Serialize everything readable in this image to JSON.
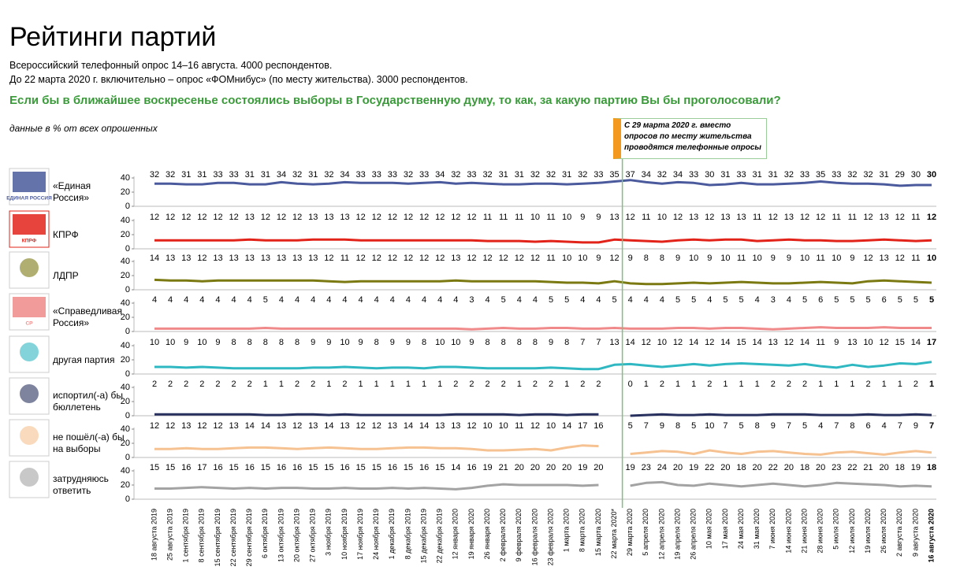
{
  "chart_data": {
    "type": "line",
    "title": "Рейтинги партий",
    "subtitle": [
      "Всероссийский телефонный опрос 14–16 августа. 4000 респондентов.",
      "До 22 марта 2020 г. включительно – опрос «ФОМнибус» (по месту жительства). 3000 респондентов."
    ],
    "question": "Если бы в ближайшее воскресенье состоялись выборы в Государственную думу, то как, за какую партию Вы бы проголосовали?",
    "note": "данные в % от всех опрошенных",
    "annotation": "С 29 марта 2020 г. вместо опросов по месту жительства проводятся телефонные опросы",
    "ylim": [
      0,
      40
    ],
    "yticks": [
      0,
      20,
      40
    ],
    "categories": [
      "18 августа 2019",
      "25 августа 2019",
      "1 сентября 2019",
      "8 сентября 2019",
      "15 сентября 2019",
      "22 сентября 2019",
      "29 сентября 2019",
      "6 октября 2019",
      "13 октября 2019",
      "20 октября 2019",
      "27 октября 2019",
      "3 ноября 2019",
      "10 ноября 2019",
      "17 ноября 2019",
      "24 ноября 2019",
      "1 декабря 2019",
      "8 декабря 2019",
      "15 декабря 2019",
      "22 декабря 2019",
      "12 января 2020",
      "19 января 2020",
      "26 января 2020",
      "2 февраля 2020",
      "9 февраля 2020",
      "16 февраля 2020",
      "23 февраля 2020",
      "1 марта 2020",
      "8 марта 2020",
      "15 марта 2020",
      "22 марта 2020*",
      "29 марта 2020",
      "5 апреля 2020",
      "12 апреля 2020",
      "19 апреля 2020",
      "26 апреля 2020",
      "10 мая 2020",
      "17 мая 2020",
      "24 мая 2020",
      "31 мая 2020",
      "7 июня 2020",
      "14 июня 2020",
      "21 июня 2020",
      "28 июня 2020",
      "5 июля 2020",
      "12 июля 2020",
      "19 июля 2020",
      "26 июля 2020",
      "2 августа 2020",
      "9 августа 2020",
      "16 августа 2020"
    ],
    "series": [
      {
        "name": "«Единая Россия»",
        "logo_text": "ЕДИНАЯ РОССИЯ",
        "color": "#4a5a9c",
        "values": [
          32,
          32,
          31,
          31,
          33,
          33,
          31,
          31,
          34,
          32,
          31,
          32,
          34,
          33,
          33,
          33,
          32,
          33,
          34,
          32,
          33,
          32,
          31,
          31,
          32,
          32,
          31,
          32,
          33,
          35,
          37,
          34,
          32,
          34,
          33,
          30,
          31,
          33,
          31,
          31,
          32,
          33,
          35,
          33,
          32,
          32,
          31,
          29,
          30,
          30
        ]
      },
      {
        "name": "КПРФ",
        "logo_text": "КПРФ",
        "color": "#e2231a",
        "values": [
          12,
          12,
          12,
          12,
          12,
          12,
          13,
          12,
          12,
          12,
          13,
          13,
          13,
          12,
          12,
          12,
          12,
          12,
          12,
          12,
          12,
          11,
          11,
          11,
          10,
          11,
          10,
          9,
          9,
          13,
          12,
          11,
          10,
          12,
          13,
          12,
          13,
          13,
          11,
          12,
          13,
          12,
          12,
          11,
          11,
          12,
          13,
          12,
          11,
          12
        ]
      },
      {
        "name": "ЛДПР",
        "color": "#7b7a12",
        "values": [
          14,
          13,
          13,
          12,
          13,
          13,
          13,
          13,
          13,
          13,
          13,
          12,
          11,
          12,
          12,
          12,
          12,
          12,
          12,
          13,
          12,
          12,
          12,
          12,
          12,
          11,
          10,
          10,
          9,
          12,
          9,
          8,
          8,
          9,
          10,
          9,
          10,
          11,
          10,
          9,
          9,
          10,
          11,
          10,
          9,
          12,
          13,
          12,
          11,
          10
        ]
      },
      {
        "name": "«Справедливая Россия»",
        "logo_text": "СР",
        "color": "#f08a8a",
        "values": [
          4,
          4,
          4,
          4,
          4,
          4,
          4,
          5,
          4,
          4,
          4,
          4,
          4,
          4,
          4,
          4,
          4,
          4,
          4,
          4,
          3,
          4,
          5,
          4,
          4,
          5,
          5,
          4,
          4,
          5,
          4,
          4,
          4,
          5,
          5,
          4,
          5,
          5,
          4,
          3,
          4,
          5,
          6,
          5,
          5,
          5,
          6,
          5,
          5,
          5
        ]
      },
      {
        "name": "другая партия",
        "color": "#2fb8c2",
        "values": [
          10,
          10,
          9,
          10,
          9,
          8,
          8,
          8,
          8,
          8,
          9,
          9,
          10,
          9,
          8,
          9,
          9,
          8,
          10,
          10,
          9,
          8,
          8,
          8,
          8,
          9,
          8,
          7,
          7,
          13,
          14,
          12,
          10,
          12,
          14,
          12,
          14,
          15,
          14,
          13,
          12,
          14,
          11,
          9,
          13,
          10,
          12,
          15,
          14,
          17
        ]
      },
      {
        "name": "испортил(-а) бы бюллетень",
        "color": "#28305e",
        "values": [
          2,
          2,
          2,
          2,
          2,
          2,
          2,
          1,
          1,
          2,
          2,
          1,
          2,
          1,
          1,
          1,
          1,
          1,
          1,
          2,
          2,
          2,
          2,
          1,
          2,
          2,
          1,
          2,
          2,
          null,
          0,
          1,
          2,
          1,
          1,
          2,
          1,
          1,
          1,
          2,
          2,
          2,
          1,
          1,
          1,
          2,
          1,
          1,
          2,
          1
        ]
      },
      {
        "name": "не пошёл(-а) бы на выборы",
        "color": "#f6c291",
        "values": [
          12,
          12,
          13,
          12,
          12,
          13,
          14,
          14,
          13,
          12,
          13,
          14,
          13,
          12,
          12,
          13,
          14,
          14,
          13,
          13,
          12,
          10,
          10,
          11,
          12,
          10,
          14,
          17,
          16,
          null,
          5,
          7,
          9,
          8,
          5,
          10,
          7,
          5,
          8,
          9,
          7,
          5,
          4,
          7,
          8,
          6,
          4,
          7,
          9,
          7
        ]
      },
      {
        "name": "затрудняюсь ответить",
        "color": "#a3a3a3",
        "values": [
          15,
          15,
          16,
          17,
          16,
          15,
          16,
          15,
          16,
          16,
          15,
          15,
          16,
          15,
          15,
          16,
          15,
          16,
          15,
          14,
          16,
          19,
          21,
          20,
          20,
          20,
          20,
          19,
          20,
          null,
          19,
          23,
          24,
          20,
          19,
          22,
          20,
          18,
          20,
          22,
          20,
          18,
          20,
          23,
          22,
          21,
          20,
          18,
          19,
          18
        ]
      }
    ]
  }
}
